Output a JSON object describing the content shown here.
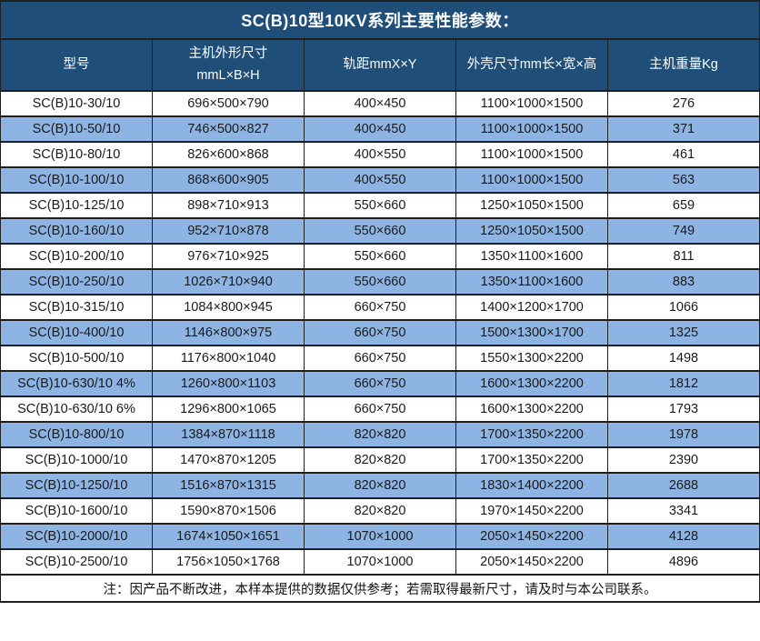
{
  "title": "SC(B)10型10KV系列主要性能参数：",
  "colors": {
    "header_bg": "#1F4E79",
    "header_text": "#FFFFFF",
    "row_alt_bg": "#8DB4E2",
    "row_bg": "#FFFFFF",
    "border": "#1F1F1F"
  },
  "footer": {
    "note": "注：因产品不断改进，本样本提供的数据仅供参考；若需取得最新尺寸，请及时与本公司联系。"
  },
  "chart_data": {
    "type": "table",
    "title": "SC(B)10型10KV系列主要性能参数：",
    "columns": [
      "型号",
      "主机外形尺寸\nmmL×B×H",
      "轨距mmX×Y",
      "外壳尺寸mm长×宽×高",
      "主机重量Kg"
    ],
    "rows": [
      [
        "SC(B)10-30/10",
        "696×500×790",
        "400×450",
        "1100×1000×1500",
        "276"
      ],
      [
        "SC(B)10-50/10",
        "746×500×827",
        "400×450",
        "1100×1000×1500",
        "371"
      ],
      [
        "SC(B)10-80/10",
        "826×600×868",
        "400×550",
        "1100×1000×1500",
        "461"
      ],
      [
        "SC(B)10-100/10",
        "868×600×905",
        "400×550",
        "1100×1000×1500",
        "563"
      ],
      [
        "SC(B)10-125/10",
        "898×710×913",
        "550×660",
        "1250×1050×1500",
        "659"
      ],
      [
        "SC(B)10-160/10",
        "952×710×878",
        "550×660",
        "1250×1050×1500",
        "749"
      ],
      [
        "SC(B)10-200/10",
        "976×710×925",
        "550×660",
        "1350×1100×1600",
        "811"
      ],
      [
        "SC(B)10-250/10",
        "1026×710×940",
        "550×660",
        "1350×1100×1600",
        "883"
      ],
      [
        "SC(B)10-315/10",
        "1084×800×945",
        "660×750",
        "1400×1200×1700",
        "1066"
      ],
      [
        "SC(B)10-400/10",
        "1146×800×975",
        "660×750",
        "1500×1300×1700",
        "1325"
      ],
      [
        "SC(B)10-500/10",
        "1176×800×1040",
        "660×750",
        "1550×1300×2200",
        "1498"
      ],
      [
        "SC(B)10-630/10 4%",
        "1260×800×1103",
        "660×750",
        "1600×1300×2200",
        "1812"
      ],
      [
        "SC(B)10-630/10 6%",
        "1296×800×1065",
        "660×750",
        "1600×1300×2200",
        "1793"
      ],
      [
        "SC(B)10-800/10",
        "1384×870×1118",
        "820×820",
        "1700×1350×2200",
        "1978"
      ],
      [
        "SC(B)10-1000/10",
        "1470×870×1205",
        "820×820",
        "1700×1350×2200",
        "2390"
      ],
      [
        "SC(B)10-1250/10",
        "1516×870×1315",
        "820×820",
        "1830×1400×2200",
        "2688"
      ],
      [
        "SC(B)10-1600/10",
        "1590×870×1506",
        "820×820",
        "1970×1450×2200",
        "3341"
      ],
      [
        "SC(B)10-2000/10",
        "1674×1050×1651",
        "1070×1000",
        "2050×1450×2200",
        "4128"
      ],
      [
        "SC(B)10-2500/10",
        "1756×1050×1768",
        "1070×1000",
        "2050×1450×2200",
        "4896"
      ]
    ]
  }
}
